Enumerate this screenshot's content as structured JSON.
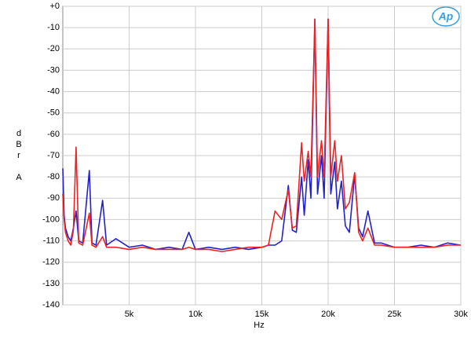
{
  "chart_data": {
    "type": "line",
    "xlabel": "Hz",
    "ylabel_lines": [
      "d",
      "B",
      "r",
      "A"
    ],
    "logo": "Ap",
    "x": [
      0,
      100,
      200,
      400,
      600,
      800,
      1000,
      1200,
      1500,
      2000,
      2200,
      2500,
      3000,
      3300,
      4000,
      5000,
      6000,
      7000,
      8000,
      9000,
      9500,
      10000,
      11000,
      12000,
      13000,
      14000,
      15000,
      15500,
      16000,
      16500,
      17000,
      17300,
      17600,
      18000,
      18200,
      18500,
      18700,
      19000,
      19200,
      19500,
      19700,
      20000,
      20200,
      20500,
      20700,
      21000,
      21300,
      21600,
      22000,
      22300,
      22600,
      23000,
      23500,
      24000,
      25000,
      26000,
      27000,
      28000,
      29000,
      30000
    ],
    "series": [
      {
        "color": "#2222cc",
        "values": [
          -76,
          -98,
          -104,
          -108,
          -110,
          -104,
          -96,
          -110,
          -111,
          -77,
          -111,
          -112,
          -91,
          -112,
          -109,
          -113,
          -112,
          -114,
          -113,
          -114,
          -106,
          -114,
          -113,
          -114,
          -113,
          -114,
          -113,
          -112,
          -112,
          -110,
          -84,
          -105,
          -106,
          -80,
          -98,
          -72,
          -90,
          -6,
          -88,
          -70,
          -90,
          -6,
          -88,
          -73,
          -95,
          -82,
          -103,
          -106,
          -79,
          -104,
          -108,
          -96,
          -111,
          -111,
          -113,
          -113,
          -112,
          -113,
          -111,
          -112
        ]
      },
      {
        "color": "#ee2222",
        "values": [
          -88,
          -100,
          -106,
          -110,
          -112,
          -105,
          -66,
          -111,
          -112,
          -97,
          -112,
          -113,
          -108,
          -113,
          -113,
          -114,
          -113,
          -114,
          -114,
          -114,
          -113,
          -114,
          -114,
          -115,
          -114,
          -113,
          -113,
          -112,
          -96,
          -100,
          -86,
          -104,
          -103,
          -64,
          -82,
          -68,
          -80,
          -6,
          -80,
          -63,
          -80,
          -6,
          -80,
          -63,
          -82,
          -70,
          -95,
          -92,
          -78,
          -106,
          -110,
          -104,
          -112,
          -112,
          -113,
          -113,
          -113,
          -113,
          -112,
          -112
        ]
      }
    ],
    "xlim": [
      0,
      30000
    ],
    "xticks": [
      {
        "value": 5000,
        "label": "5k"
      },
      {
        "value": 10000,
        "label": "10k"
      },
      {
        "value": 15000,
        "label": "15k"
      },
      {
        "value": 20000,
        "label": "20k"
      },
      {
        "value": 25000,
        "label": "25k"
      },
      {
        "value": 30000,
        "label": "30k"
      }
    ],
    "ylim": [
      -140,
      0
    ],
    "yticks": [
      -140,
      -130,
      -120,
      -110,
      -100,
      -90,
      -80,
      -70,
      -60,
      -50,
      -40,
      -30,
      -20,
      -10,
      {
        "value": 0,
        "label": "+0"
      }
    ],
    "grid": true
  }
}
